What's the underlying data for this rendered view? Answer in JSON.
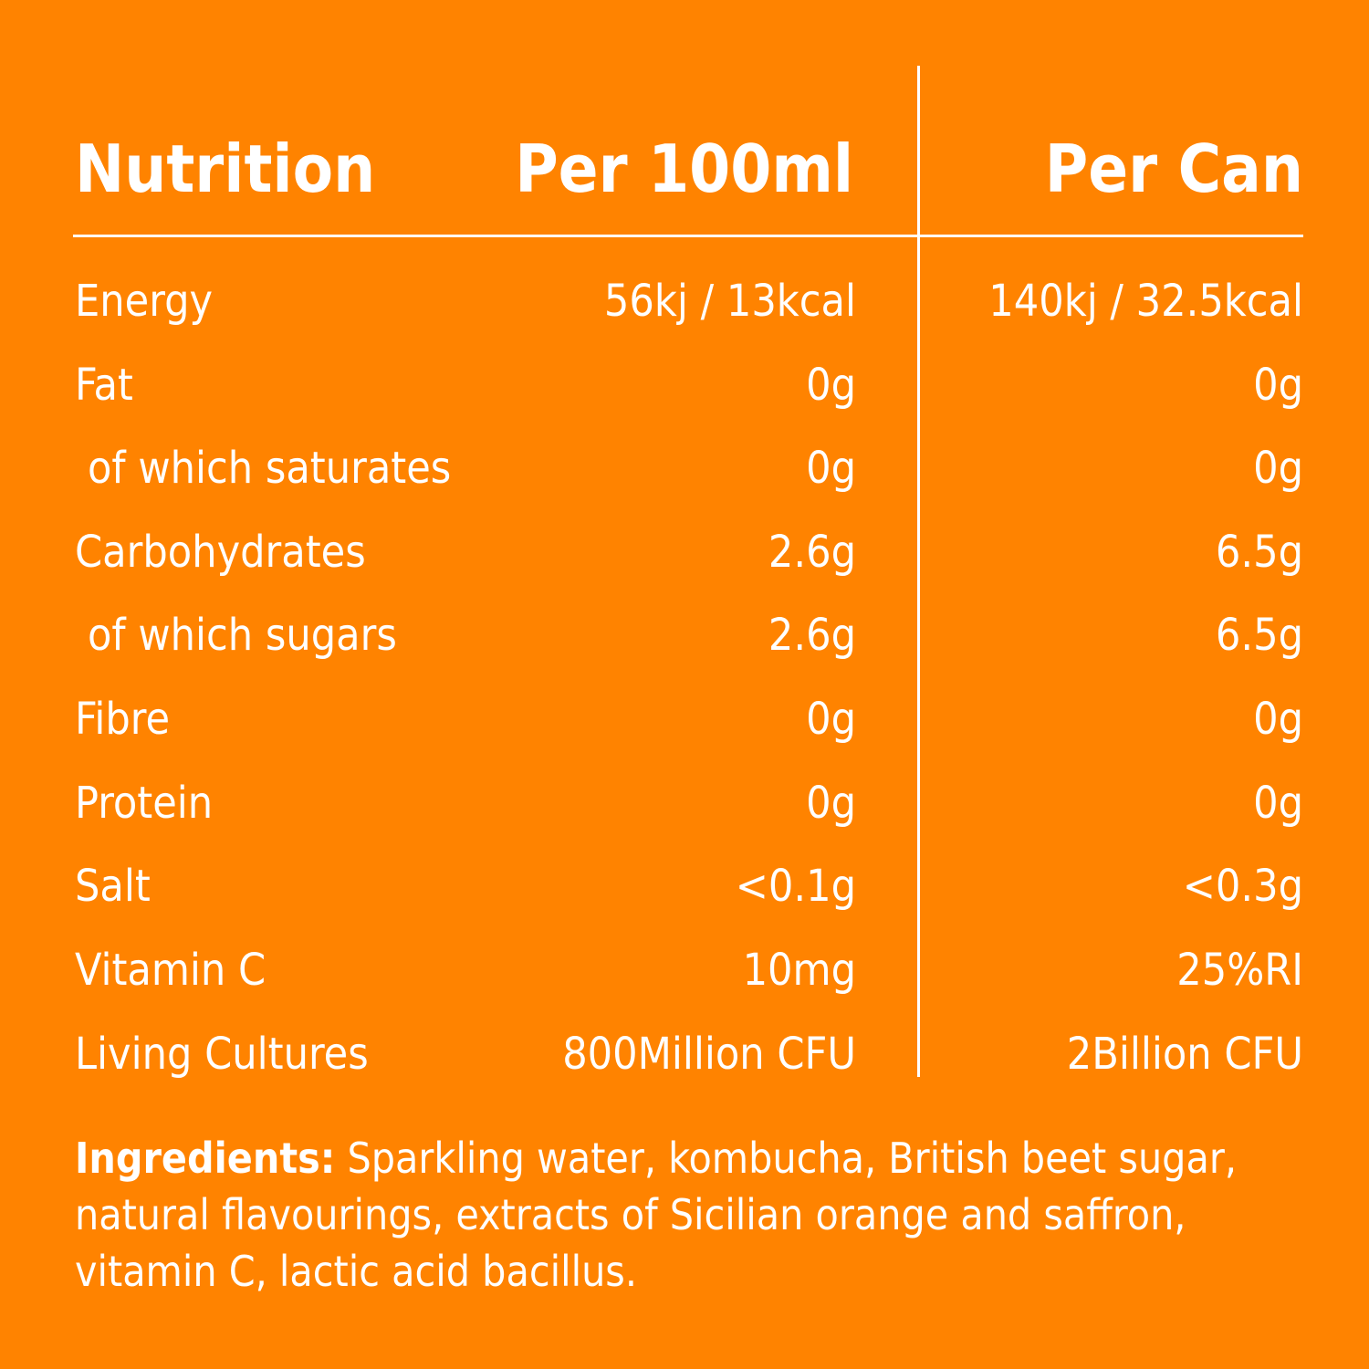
{
  "header": {
    "nutrition": "Nutrition",
    "per_100ml": "Per 100ml",
    "per_can": "Per Can"
  },
  "rows": [
    {
      "name": "Energy",
      "per_100ml": "56kj / 13kcal",
      "per_can": "140kj / 32.5kcal"
    },
    {
      "name": "Fat",
      "per_100ml": "0g",
      "per_can": "0g"
    },
    {
      "name": "of which saturates",
      "per_100ml": "0g",
      "per_can": "0g"
    },
    {
      "name": "Carbohydrates",
      "per_100ml": "2.6g",
      "per_can": "6.5g"
    },
    {
      "name": "of which sugars",
      "per_100ml": "2.6g",
      "per_can": "6.5g"
    },
    {
      "name": "Fibre",
      "per_100ml": "0g",
      "per_can": "0g"
    },
    {
      "name": "Protein",
      "per_100ml": "0g",
      "per_can": "0g"
    },
    {
      "name": "Salt",
      "per_100ml": "<0.1g",
      "per_can": "<0.3g"
    },
    {
      "name": "Vitamin C",
      "per_100ml": "10mg",
      "per_can": "25%RI"
    },
    {
      "name": "Living Cultures",
      "per_100ml": "800Million CFU",
      "per_can": "2Billion CFU"
    }
  ],
  "ingredients": {
    "label": "Ingredients:",
    "text": "Sparkling water, kombucha, British beet sugar, natural flavourings, extracts of Sicilian orange and saffron, vitamin C, lactic acid bacillus."
  },
  "colors": {
    "background": "#FF8300",
    "text": "#FFFFFF"
  }
}
